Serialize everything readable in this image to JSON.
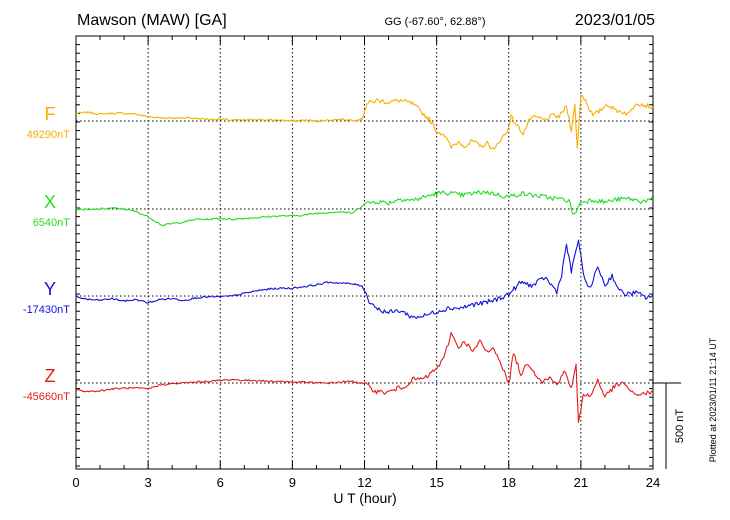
{
  "header": {
    "station": "Mawson (MAW)  [GA]",
    "coords": "GG (-67.60°,  62.88°)",
    "date": "2023/01/05"
  },
  "plotted_note": "Plotted at 2023/01/11 21:14 UT",
  "scale_label": "500 nT",
  "chart_data": {
    "type": "line",
    "xlabel": "U T (hour)",
    "xlim": [
      0,
      24
    ],
    "xticks": [
      0,
      3,
      6,
      9,
      12,
      15,
      18,
      21,
      24
    ],
    "xtick_labels": [
      "0",
      "3",
      "6",
      "9",
      "12",
      "15",
      "18",
      "21",
      "24"
    ],
    "grid": true,
    "scale_bar_nT": 500,
    "series": [
      {
        "name": "F",
        "baseline_label": "49290nT",
        "baseline_nT": 49290,
        "color": "#f5b000",
        "x": [
          0,
          0.5,
          1,
          1.5,
          2,
          2.5,
          3,
          3.5,
          4,
          4.5,
          5,
          5.5,
          6,
          6.5,
          7,
          7.5,
          8,
          8.5,
          9,
          9.5,
          10,
          10.5,
          11,
          11.5,
          11.9,
          12.1,
          12.5,
          13,
          13.5,
          14,
          14.3,
          14.7,
          15,
          15.3,
          15.6,
          15.9,
          16.2,
          16.5,
          16.8,
          17.1,
          17.4,
          17.7,
          17.9,
          18.1,
          18.3,
          18.6,
          18.9,
          19.2,
          19.5,
          19.8,
          20.1,
          20.4,
          20.6,
          20.75,
          20.85,
          21,
          21.2,
          21.5,
          21.8,
          22.1,
          22.4,
          22.7,
          23,
          23.3,
          23.6,
          24
        ],
        "values": [
          45,
          50,
          40,
          45,
          45,
          40,
          25,
          20,
          15,
          20,
          15,
          10,
          10,
          5,
          5,
          10,
          5,
          5,
          0,
          5,
          0,
          5,
          10,
          5,
          10,
          100,
          120,
          110,
          120,
          100,
          60,
          10,
          -60,
          -75,
          -155,
          -120,
          -145,
          -115,
          -150,
          -130,
          -170,
          -95,
          -75,
          25,
          -20,
          -70,
          15,
          20,
          5,
          30,
          25,
          85,
          -50,
          90,
          -160,
          160,
          120,
          30,
          60,
          100,
          65,
          55,
          40,
          110,
          95,
          80
        ]
      },
      {
        "name": "X",
        "baseline_label": "6540nT",
        "baseline_nT": 6540,
        "color": "#22dd22",
        "x": [
          0,
          0.5,
          1,
          1.5,
          2,
          2.5,
          3,
          3.3,
          3.6,
          4,
          4.5,
          5,
          5.5,
          6,
          6.5,
          7,
          7.5,
          8,
          8.5,
          9,
          9.5,
          10,
          10.5,
          11,
          11.5,
          12,
          12.5,
          13,
          13.5,
          14,
          14.5,
          15,
          15.5,
          16,
          16.5,
          17,
          17.5,
          18,
          18.5,
          19,
          19.5,
          20,
          20.5,
          20.7,
          21,
          21.5,
          22,
          22.5,
          23,
          23.5,
          24
        ],
        "values": [
          0,
          -5,
          0,
          5,
          0,
          -15,
          -45,
          -70,
          -95,
          -85,
          -75,
          -60,
          -60,
          -55,
          -60,
          -55,
          -50,
          -45,
          -40,
          -40,
          -35,
          -25,
          -20,
          -15,
          -25,
          30,
          45,
          35,
          60,
          50,
          70,
          90,
          95,
          80,
          90,
          100,
          85,
          70,
          90,
          80,
          70,
          60,
          50,
          -40,
          40,
          55,
          40,
          55,
          60,
          45,
          55
        ]
      },
      {
        "name": "Y",
        "baseline_label": "-17430nT",
        "baseline_nT": -17430,
        "color": "#1010dd",
        "x": [
          0,
          0.5,
          1,
          1.5,
          2,
          2.5,
          3,
          3.5,
          4,
          4.5,
          5,
          5.5,
          6,
          6.5,
          7,
          7.5,
          8,
          8.5,
          9,
          9.5,
          10,
          10.5,
          11,
          11.5,
          11.9,
          12.2,
          12.6,
          13,
          13.5,
          14,
          14.5,
          15,
          15.5,
          16,
          16.5,
          17,
          17.5,
          18,
          18.5,
          19,
          19.5,
          20,
          20.2,
          20.4,
          20.6,
          20.9,
          21.1,
          21.4,
          21.7,
          22,
          22.3,
          22.6,
          22.9,
          23.3,
          23.7,
          24
        ],
        "values": [
          -5,
          -20,
          -25,
          -15,
          -30,
          -20,
          -40,
          -20,
          -15,
          -25,
          -10,
          -5,
          -5,
          0,
          15,
          30,
          40,
          45,
          45,
          55,
          65,
          80,
          75,
          70,
          60,
          -30,
          -80,
          -95,
          -85,
          -125,
          -115,
          -90,
          -70,
          -70,
          -50,
          -40,
          -20,
          10,
          80,
          60,
          110,
          25,
          125,
          300,
          140,
          330,
          120,
          40,
          175,
          60,
          120,
          30,
          10,
          20,
          -10,
          5
        ]
      },
      {
        "name": "Z",
        "baseline_label": "-45660nT",
        "baseline_nT": -45660,
        "color": "#e51a1a",
        "x": [
          0,
          0.5,
          1,
          1.5,
          2,
          2.5,
          3,
          3.5,
          4,
          4.5,
          5,
          5.5,
          6,
          6.5,
          7,
          7.5,
          8,
          8.5,
          9,
          9.5,
          10,
          10.5,
          11,
          11.5,
          12,
          12.5,
          13,
          13.3,
          13.6,
          14,
          14.5,
          15,
          15.3,
          15.6,
          15.9,
          16.2,
          16.5,
          16.8,
          17.1,
          17.4,
          17.7,
          18,
          18.2,
          18.5,
          18.8,
          19.1,
          19.4,
          19.7,
          20,
          20.3,
          20.6,
          20.8,
          20.9,
          21.1,
          21.4,
          21.7,
          22,
          22.4,
          22.8,
          23.2,
          23.6,
          24
        ],
        "values": [
          -40,
          -50,
          -45,
          -35,
          -30,
          -30,
          -35,
          -10,
          -5,
          0,
          5,
          10,
          15,
          20,
          15,
          15,
          10,
          10,
          5,
          5,
          0,
          0,
          5,
          10,
          -5,
          -50,
          -55,
          -35,
          -25,
          20,
          25,
          85,
          140,
          290,
          210,
          240,
          180,
          240,
          180,
          200,
          110,
          -10,
          180,
          50,
          120,
          55,
          10,
          30,
          -10,
          70,
          -30,
          100,
          -240,
          -60,
          -80,
          20,
          -80,
          -20,
          0,
          -70,
          -60,
          -55
        ]
      }
    ]
  }
}
